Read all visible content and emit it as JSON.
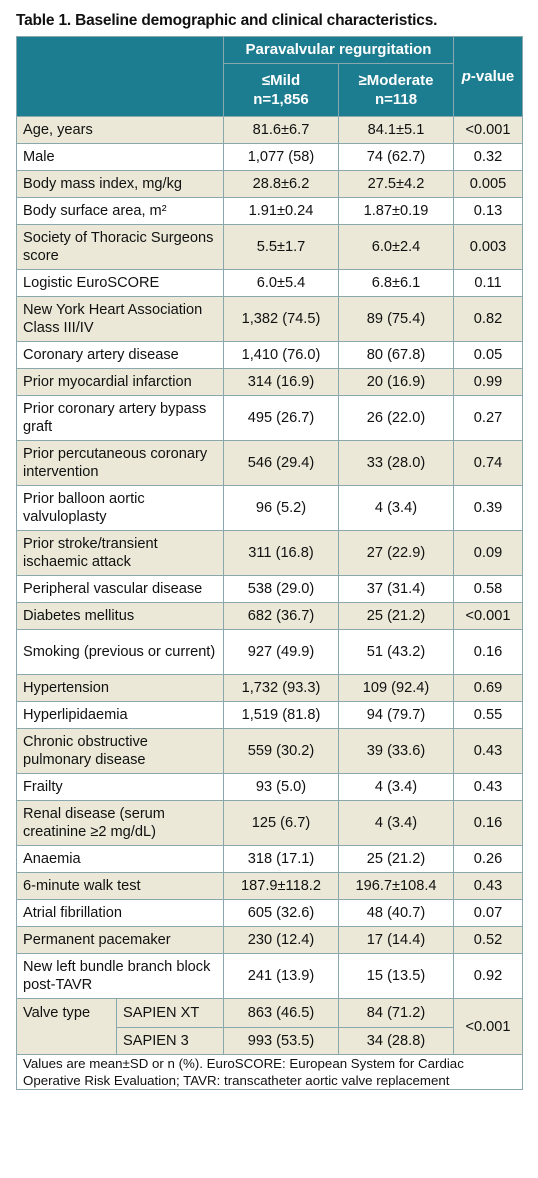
{
  "caption": "Table 1. Baseline demographic and clinical characteristics.",
  "header": {
    "group": "Paravalvular regurgitation",
    "col1_line1": "≤Mild",
    "col1_line2": "n=1,856",
    "col2_line1": "≥Moderate",
    "col2_line2": "n=118",
    "pvalue_prefix": "p",
    "pvalue_suffix": "-value"
  },
  "rows": [
    {
      "label": "Age, years",
      "mild": "81.6±6.7",
      "moderate": "84.1±5.1",
      "p": "<0.001"
    },
    {
      "label": "Male",
      "mild": "1,077 (58)",
      "moderate": "74 (62.7)",
      "p": "0.32"
    },
    {
      "label": "Body mass index, mg/kg",
      "mild": "28.8±6.2",
      "moderate": "27.5±4.2",
      "p": "0.005"
    },
    {
      "label": "Body surface area, m²",
      "mild": "1.91±0.24",
      "moderate": "1.87±0.19",
      "p": "0.13"
    },
    {
      "label": "Society of Thoracic Surgeons score",
      "mild": "5.5±1.7",
      "moderate": "6.0±2.4",
      "p": "0.003"
    },
    {
      "label": "Logistic EuroSCORE",
      "mild": "6.0±5.4",
      "moderate": "6.8±6.1",
      "p": "0.11"
    },
    {
      "label": "New York Heart Association Class III/IV",
      "mild": "1,382 (74.5)",
      "moderate": "89 (75.4)",
      "p": "0.82"
    },
    {
      "label": "Coronary artery disease",
      "mild": "1,410 (76.0)",
      "moderate": "80 (67.8)",
      "p": "0.05"
    },
    {
      "label": "Prior myocardial infarction",
      "mild": "314 (16.9)",
      "moderate": "20 (16.9)",
      "p": "0.99"
    },
    {
      "label": "Prior coronary artery bypass graft",
      "mild": "495 (26.7)",
      "moderate": "26 (22.0)",
      "p": "0.27"
    },
    {
      "label": "Prior percutaneous coronary intervention",
      "mild": "546 (29.4)",
      "moderate": "33 (28.0)",
      "p": "0.74"
    },
    {
      "label": "Prior balloon aortic valvuloplasty",
      "mild": "96 (5.2)",
      "moderate": "4 (3.4)",
      "p": "0.39"
    },
    {
      "label": "Prior stroke/transient ischaemic attack",
      "mild": "311 (16.8)",
      "moderate": "27 (22.9)",
      "p": "0.09"
    },
    {
      "label": "Peripheral vascular disease",
      "mild": "538 (29.0)",
      "moderate": "37 (31.4)",
      "p": "0.58"
    },
    {
      "label": "Diabetes mellitus",
      "mild": "682 (36.7)",
      "moderate": "25 (21.2)",
      "p": "<0.001"
    },
    {
      "label": "Smoking (previous or current)",
      "mild": "927 (49.9)",
      "moderate": "51 (43.2)",
      "p": "0.16"
    },
    {
      "label": "Hypertension",
      "mild": "1,732 (93.3)",
      "moderate": "109 (92.4)",
      "p": "0.69"
    },
    {
      "label": "Hyperlipidaemia",
      "mild": "1,519 (81.8)",
      "moderate": "94 (79.7)",
      "p": "0.55"
    },
    {
      "label": "Chronic obstructive pulmonary disease",
      "mild": "559 (30.2)",
      "moderate": "39 (33.6)",
      "p": "0.43"
    },
    {
      "label": "Frailty",
      "mild": "93 (5.0)",
      "moderate": "4 (3.4)",
      "p": "0.43"
    },
    {
      "label": "Renal disease (serum creatinine ≥2 mg/dL)",
      "mild": "125 (6.7)",
      "moderate": "4 (3.4)",
      "p": "0.16"
    },
    {
      "label": "Anaemia",
      "mild": "318 (17.1)",
      "moderate": "25 (21.2)",
      "p": "0.26"
    },
    {
      "label": "6-minute walk test",
      "mild": "187.9±118.2",
      "moderate": "196.7±108.4",
      "p": "0.43"
    },
    {
      "label": "Atrial fibrillation",
      "mild": "605 (32.6)",
      "moderate": "48 (40.7)",
      "p": "0.07"
    },
    {
      "label": "Permanent pacemaker",
      "mild": "230 (12.4)",
      "moderate": "17 (14.4)",
      "p": "0.52"
    },
    {
      "label": "New left bundle branch block post-TAVR",
      "mild": "241 (13.9)",
      "moderate": "15 (13.5)",
      "p": "0.92"
    }
  ],
  "valve_type": {
    "label": "Valve type",
    "p": "<0.001",
    "subrows": [
      {
        "label": "SAPIEN XT",
        "mild": "863 (46.5)",
        "moderate": "84 (71.2)"
      },
      {
        "label": "SAPIEN 3",
        "mild": "993 (53.5)",
        "moderate": "34 (28.8)"
      }
    ]
  },
  "footnote": "Values are mean±SD or n (%). EuroSCORE: European System for Cardiac Operative Risk Evaluation; TAVR: transcatheter aortic valve replacement"
}
